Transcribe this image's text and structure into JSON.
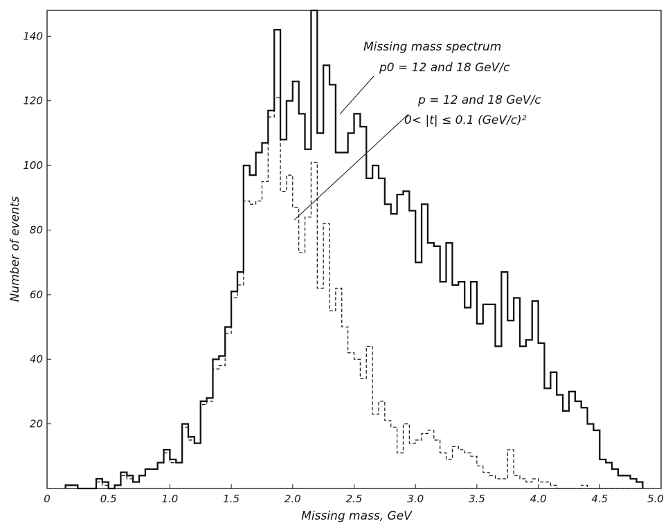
{
  "chart_data": {
    "type": "histogram-step",
    "xlabel": "Missing mass, GeV",
    "ylabel": "Number of events",
    "xlim": [
      0,
      5.0
    ],
    "ylim": [
      0,
      148
    ],
    "x_ticks": [
      0,
      0.5,
      1.0,
      1.5,
      2.0,
      2.5,
      3.0,
      3.5,
      4.0,
      4.5,
      5.0
    ],
    "x_tick_labels": [
      "0",
      "0.5",
      "1.0",
      "1.5",
      "2.0",
      "2.5",
      "3.0",
      "3.5",
      "4.0",
      "4.5",
      "5.0"
    ],
    "y_ticks": [
      20,
      40,
      60,
      80,
      100,
      120,
      140
    ],
    "y_tick_labels": [
      "20",
      "40",
      "60",
      "80",
      "100",
      "120",
      "140"
    ],
    "bin_width": 0.05,
    "bin_start": 0.15,
    "series": [
      {
        "style": "solid",
        "values": [
          1,
          1,
          0,
          0,
          0,
          3,
          2,
          0,
          1,
          5,
          4,
          2,
          4,
          6,
          6,
          8,
          12,
          9,
          8,
          20,
          16,
          14,
          27,
          28,
          40,
          41,
          50,
          61,
          67,
          100,
          97,
          104,
          107,
          117,
          142,
          108,
          120,
          126,
          116,
          105,
          148,
          110,
          131,
          125,
          104,
          104,
          110,
          116,
          112,
          96,
          100,
          96,
          88,
          85,
          91,
          92,
          86,
          70,
          88,
          76,
          75,
          64,
          76,
          63,
          64,
          56,
          64,
          51,
          57,
          57,
          44,
          67,
          52,
          59,
          44,
          46,
          58,
          45,
          31,
          36,
          29,
          24,
          30,
          27,
          25,
          20,
          18,
          9,
          8,
          6,
          4,
          4,
          3,
          2
        ],
        "label_lines": [
          "Missing mass spectrum",
          "p0 = 12 and 18 GeV/c"
        ]
      },
      {
        "style": "dashed",
        "values": [
          1,
          1,
          0,
          0,
          0,
          2,
          1,
          0,
          1,
          4,
          3,
          2,
          4,
          6,
          6,
          8,
          11,
          8,
          8,
          19,
          15,
          14,
          26,
          27,
          37,
          38,
          48,
          59,
          63,
          89,
          88,
          89,
          95,
          115,
          121,
          92,
          97,
          87,
          73,
          84,
          101,
          62,
          82,
          55,
          62,
          50,
          42,
          40,
          34,
          44,
          23,
          27,
          21,
          19,
          11,
          20,
          14,
          15,
          17,
          18,
          15,
          11,
          9,
          13,
          12,
          11,
          10,
          7,
          5,
          4,
          3,
          3,
          12,
          4,
          3,
          2,
          3,
          2,
          2,
          1,
          0,
          0,
          0,
          0,
          1,
          0,
          0,
          0,
          0,
          0,
          0,
          0,
          0,
          0
        ],
        "label_lines": [
          "p = 12 and 18 GeV/c",
          "0< |t| ≤ 0.1 (GeV/c)²"
        ]
      }
    ]
  }
}
